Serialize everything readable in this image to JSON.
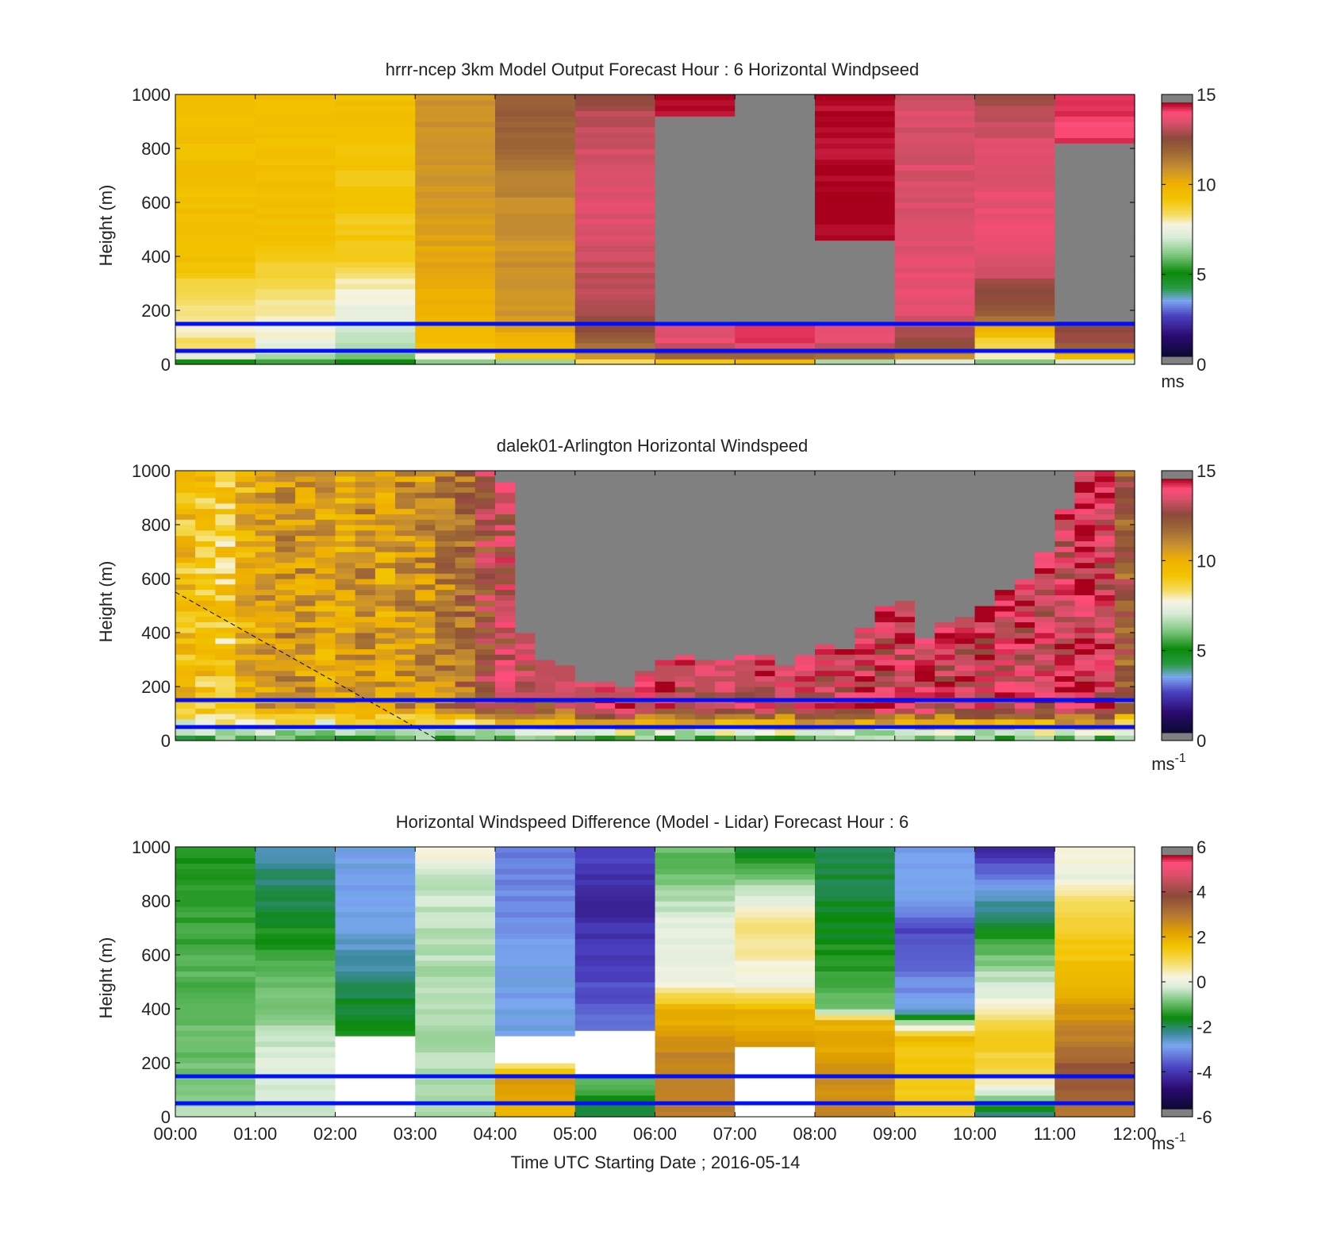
{
  "figure": {
    "xlabel": "Time UTC  Starting Date ; 2016-05-14",
    "x_ticks": [
      "00:00",
      "01:00",
      "02:00",
      "03:00",
      "04:00",
      "05:00",
      "06:00",
      "07:00",
      "08:00",
      "09:00",
      "10:00",
      "11:00",
      "12:00"
    ]
  },
  "chart_data": [
    {
      "type": "heatmap",
      "title": "hrrr-ncep 3km Model Output   Forecast Hour : 6 Horizontal Windpseed",
      "ylabel": "Height (m)",
      "xlabel": "",
      "xlim": [
        0,
        12
      ],
      "ylim": [
        0,
        1000
      ],
      "y_ticks": [
        "0",
        "200",
        "400",
        "600",
        "800",
        "1000"
      ],
      "colorbar": {
        "ticks": [
          "0",
          "5",
          "10",
          "15"
        ],
        "min": 0,
        "max": 15,
        "unit": "ms",
        "scheme": "speed"
      },
      "reference_lines_m": [
        50,
        150
      ],
      "reference_line_color": "#0010ff",
      "missing_color": "#808080",
      "columns": [
        {
          "t0": 0,
          "t1": 1,
          "profile": [
            [
              0,
              4.5
            ],
            [
              20,
              6
            ],
            [
              40,
              8.5
            ],
            [
              80,
              8.5
            ],
            [
              120,
              8
            ],
            [
              180,
              8
            ],
            [
              260,
              8.5
            ],
            [
              400,
              9.5
            ],
            [
              1000,
              9.5
            ]
          ]
        },
        {
          "t0": 1,
          "t1": 2,
          "profile": [
            [
              0,
              5
            ],
            [
              20,
              6
            ],
            [
              40,
              7
            ],
            [
              80,
              7.5
            ],
            [
              140,
              8
            ],
            [
              200,
              8
            ],
            [
              400,
              9
            ],
            [
              500,
              9.5
            ],
            [
              1000,
              9.5
            ]
          ]
        },
        {
          "t0": 2,
          "t1": 3,
          "profile": [
            [
              0,
              4.5
            ],
            [
              30,
              6
            ],
            [
              80,
              6.5
            ],
            [
              140,
              7
            ],
            [
              190,
              7.5
            ],
            [
              220,
              7.5
            ],
            [
              300,
              8
            ],
            [
              380,
              9
            ],
            [
              1000,
              9.5
            ]
          ]
        },
        {
          "t0": 3,
          "t1": 4,
          "profile": [
            [
              0,
              5
            ],
            [
              30,
              8
            ],
            [
              60,
              9.5
            ],
            [
              200,
              10
            ],
            [
              400,
              10.5
            ],
            [
              700,
              11
            ],
            [
              1000,
              11
            ]
          ]
        },
        {
          "t0": 4,
          "t1": 5,
          "profile": [
            [
              0,
              5
            ],
            [
              30,
              9
            ],
            [
              80,
              10
            ],
            [
              200,
              11
            ],
            [
              500,
              11
            ],
            [
              700,
              11.5
            ],
            [
              800,
              12
            ],
            [
              1000,
              12.5
            ]
          ]
        },
        {
          "t0": 5,
          "t1": 6,
          "profile": [
            [
              0,
              7
            ],
            [
              30,
              11
            ],
            [
              80,
              12
            ],
            [
              150,
              13
            ],
            [
              300,
              13.5
            ],
            [
              600,
              14
            ],
            [
              900,
              13.5
            ],
            [
              1000,
              13
            ]
          ]
        },
        {
          "t0": 6,
          "t1": 7,
          "profile": [
            [
              0,
              8
            ],
            [
              30,
              12
            ],
            [
              80,
              14
            ],
            [
              160,
              14
            ],
            [
              170,
              "NaN"
            ],
            [
              900,
              "NaN"
            ],
            [
              910,
              15
            ],
            [
              1000,
              15
            ]
          ]
        },
        {
          "t0": 7,
          "t1": 8,
          "profile": [
            [
              0,
              8.5
            ],
            [
              30,
              12
            ],
            [
              80,
              14.5
            ],
            [
              160,
              14.5
            ],
            [
              170,
              "NaN"
            ],
            [
              1000,
              "NaN"
            ]
          ]
        },
        {
          "t0": 8,
          "t1": 9,
          "profile": [
            [
              0,
              4
            ],
            [
              30,
              12
            ],
            [
              80,
              14
            ],
            [
              160,
              14
            ],
            [
              170,
              "NaN"
            ],
            [
              450,
              "NaN"
            ],
            [
              460,
              15
            ],
            [
              1000,
              15
            ]
          ]
        },
        {
          "t0": 9,
          "t1": 10,
          "profile": [
            [
              0,
              5
            ],
            [
              30,
              11
            ],
            [
              80,
              13
            ],
            [
              200,
              14
            ],
            [
              400,
              14
            ],
            [
              600,
              13.8
            ],
            [
              1000,
              13.8
            ]
          ]
        },
        {
          "t0": 10,
          "t1": 11,
          "profile": [
            [
              0,
              5
            ],
            [
              30,
              8
            ],
            [
              80,
              8.5
            ],
            [
              180,
              12
            ],
            [
              260,
              13
            ],
            [
              400,
              14
            ],
            [
              800,
              14
            ],
            [
              1000,
              13
            ]
          ]
        },
        {
          "t0": 11,
          "t1": 12,
          "profile": [
            [
              0,
              5.5
            ],
            [
              30,
              10
            ],
            [
              80,
              13
            ],
            [
              160,
              13
            ],
            [
              170,
              "NaN"
            ],
            [
              800,
              "NaN"
            ],
            [
              810,
              14.5
            ],
            [
              1000,
              14.5
            ]
          ]
        }
      ]
    },
    {
      "type": "heatmap",
      "title": "dalek01-Arlington  Horizontal Windspeed",
      "ylabel": "Height (m)",
      "xlabel": "",
      "xlim": [
        0,
        12
      ],
      "ylim": [
        0,
        1000
      ],
      "y_ticks": [
        "0",
        "200",
        "400",
        "600",
        "800",
        "1000"
      ],
      "colorbar": {
        "ticks": [
          "0",
          "5",
          "10",
          "15"
        ],
        "min": 0,
        "max": 15,
        "unit": "ms",
        "unit_sup": "-1",
        "scheme": "speed"
      },
      "reference_lines_m": [
        50,
        150
      ],
      "reference_line_color": "#0010ff",
      "missing_color": "#808080",
      "dashed_line": [
        [
          0,
          550
        ],
        [
          3.3,
          0
        ]
      ],
      "column_width_h": 0.25,
      "columns_t0": [
        0,
        0.25,
        0.5,
        0.75,
        1,
        1.25,
        1.5,
        1.75,
        2,
        2.25,
        2.5,
        2.75,
        3,
        3.25,
        3.5,
        3.75,
        4,
        4.25,
        4.5,
        4.75,
        5,
        5.25,
        5.5,
        5.75,
        6,
        6.25,
        6.5,
        6.75,
        7,
        7.25,
        7.5,
        7.75,
        8,
        8.25,
        8.5,
        8.75,
        9,
        9.25,
        9.5,
        9.75,
        10,
        10.25,
        10.5,
        10.75,
        11,
        11.25,
        11.5,
        11.75
      ],
      "mixing_top_m": [
        1000,
        1000,
        1000,
        1000,
        1000,
        1000,
        1000,
        1000,
        1000,
        1000,
        1000,
        1000,
        1000,
        1000,
        1000,
        1000,
        950,
        400,
        300,
        280,
        220,
        220,
        200,
        250,
        290,
        310,
        290,
        290,
        320,
        310,
        280,
        320,
        350,
        340,
        410,
        490,
        520,
        380,
        430,
        450,
        500,
        550,
        600,
        700,
        850,
        1000,
        1000,
        1000
      ],
      "base_speed": [
        9.5,
        9.3,
        9.0,
        10.0,
        10.5,
        11.0,
        10.8,
        10.5,
        10.5,
        11.0,
        10.5,
        11.0,
        11.0,
        11.5,
        12.0,
        13.0,
        13.5,
        13.5,
        13.0,
        13.0,
        13.5,
        14.0,
        14.0,
        13.5,
        14.0,
        13.8,
        13.5,
        13.5,
        13.5,
        14.0,
        14.0,
        14.0,
        14.0,
        14.0,
        14.0,
        14.0,
        14.0,
        14.5,
        14.0,
        14.0,
        14.0,
        14.0,
        14.0,
        14.0,
        14.0,
        14.5,
        14.0,
        12.5
      ]
    },
    {
      "type": "heatmap",
      "title": "Horizontal Windspeed Difference (Model - Lidar) Forecast Hour : 6",
      "ylabel": "Height (m)",
      "xlabel": "Time UTC  Starting Date ; 2016-05-14",
      "xlim": [
        0,
        12
      ],
      "ylim": [
        0,
        1000
      ],
      "y_ticks": [
        "0",
        "200",
        "400",
        "600",
        "800",
        "1000"
      ],
      "colorbar": {
        "ticks": [
          "-6",
          "-4",
          "-2",
          "0",
          "2",
          "4",
          "6"
        ],
        "min": -6,
        "max": 6,
        "unit": "ms",
        "unit_sup": "-1",
        "scheme": "diverging"
      },
      "reference_lines_m": [
        50,
        150
      ],
      "reference_line_color": "#0010ff",
      "missing_color": "#ffffff",
      "columns": [
        {
          "t0": 0,
          "t1": 1,
          "profile": [
            [
              0,
              -0.5
            ],
            [
              100,
              -0.8
            ],
            [
              300,
              -1.0
            ],
            [
              600,
              -1.2
            ],
            [
              800,
              -1.5
            ],
            [
              1000,
              -1.5
            ]
          ]
        },
        {
          "t0": 1,
          "t1": 2,
          "profile": [
            [
              0,
              -0.5
            ],
            [
              200,
              0
            ],
            [
              300,
              -0.5
            ],
            [
              500,
              -1
            ],
            [
              800,
              -2
            ],
            [
              1000,
              -2.5
            ]
          ]
        },
        {
          "t0": 2,
          "t1": 3,
          "profile": [
            [
              0,
              -1
            ],
            [
              160,
              "NaN"
            ],
            [
              280,
              "NaN"
            ],
            [
              300,
              -1.5
            ],
            [
              450,
              -2
            ],
            [
              700,
              -3
            ],
            [
              1000,
              -3
            ]
          ]
        },
        {
          "t0": 3,
          "t1": 4,
          "profile": [
            [
              0,
              -0.5
            ],
            [
              300,
              -0.5
            ],
            [
              600,
              -0.5
            ],
            [
              900,
              -0.3
            ],
            [
              1000,
              0.5
            ]
          ]
        },
        {
          "t0": 4,
          "t1": 5,
          "profile": [
            [
              0,
              2
            ],
            [
              150,
              2.5
            ],
            [
              200,
              0.5
            ],
            [
              290,
              "NaN"
            ],
            [
              300,
              -3
            ],
            [
              500,
              -3
            ],
            [
              1000,
              -3.5
            ]
          ]
        },
        {
          "t0": 5,
          "t1": 6,
          "profile": [
            [
              0,
              -2
            ],
            [
              160,
              -1
            ],
            [
              170,
              "NaN"
            ],
            [
              300,
              "NaN"
            ],
            [
              310,
              -3.5
            ],
            [
              500,
              -4
            ],
            [
              800,
              -4.5
            ],
            [
              1000,
              -4
            ]
          ]
        },
        {
          "t0": 6,
          "t1": 7,
          "profile": [
            [
              0,
              3
            ],
            [
              200,
              3
            ],
            [
              400,
              2
            ],
            [
              500,
              0
            ],
            [
              700,
              0
            ],
            [
              900,
              -1
            ],
            [
              1000,
              -1
            ]
          ]
        },
        {
          "t0": 7,
          "t1": 8,
          "profile": [
            [
              0,
              2.5
            ],
            [
              110,
              "NaN"
            ],
            [
              250,
              "NaN"
            ],
            [
              260,
              2.5
            ],
            [
              400,
              2
            ],
            [
              500,
              0
            ],
            [
              700,
              1
            ],
            [
              900,
              -1
            ],
            [
              1000,
              -2
            ]
          ]
        },
        {
          "t0": 8,
          "t1": 9,
          "profile": [
            [
              0,
              3
            ],
            [
              200,
              2.5
            ],
            [
              350,
              2
            ],
            [
              400,
              -1
            ],
            [
              700,
              -1.8
            ],
            [
              1000,
              -2
            ]
          ]
        },
        {
          "t0": 9,
          "t1": 10,
          "profile": [
            [
              0,
              1.5
            ],
            [
              150,
              1.5
            ],
            [
              300,
              1.8
            ],
            [
              400,
              -3
            ],
            [
              700,
              -4
            ],
            [
              800,
              -3
            ],
            [
              1000,
              -3
            ]
          ]
        },
        {
          "t0": 10,
          "t1": 11,
          "profile": [
            [
              0,
              -2.5
            ],
            [
              150,
              1
            ],
            [
              300,
              1.5
            ],
            [
              450,
              0
            ],
            [
              600,
              -1
            ],
            [
              800,
              -2.5
            ],
            [
              950,
              -4
            ],
            [
              1000,
              -4.5
            ]
          ]
        },
        {
          "t0": 11,
          "t1": 12,
          "profile": [
            [
              0,
              3
            ],
            [
              150,
              4
            ],
            [
              300,
              3
            ],
            [
              500,
              2
            ],
            [
              800,
              1
            ],
            [
              900,
              0
            ],
            [
              1000,
              0.5
            ]
          ]
        }
      ]
    }
  ]
}
